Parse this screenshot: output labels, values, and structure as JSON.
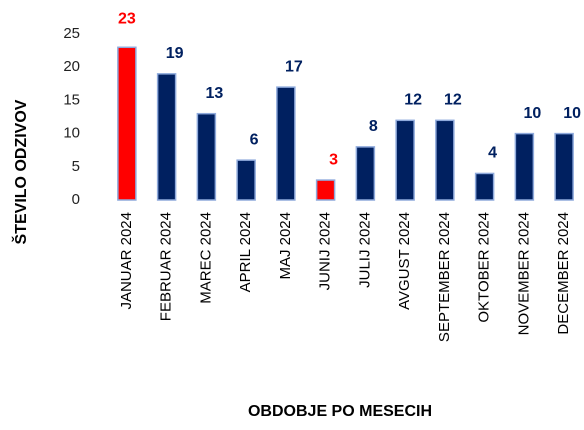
{
  "chart_data": {
    "type": "bar",
    "x_label": "OBDOBJE PO MESECIH",
    "y_label": "ŠTEVILO ODZIVOV",
    "categories": [
      "JANUAR 2024",
      "FEBRUAR 2024",
      "MAREC 2024",
      "APRIL 2024",
      "MAJ 2024",
      "JUNIJ 2024",
      "JULIJ 2024",
      "AVGUST 2024",
      "SEPTEMBER 2024",
      "OKTOBER 2024",
      "NOVEMBER 2024",
      "DECEMBER 2024"
    ],
    "values": [
      23,
      19,
      13,
      6,
      17,
      3,
      8,
      12,
      12,
      4,
      10,
      10
    ],
    "colors": [
      "#ff0000",
      "#002060",
      "#002060",
      "#002060",
      "#002060",
      "#ff0000",
      "#002060",
      "#002060",
      "#002060",
      "#002060",
      "#002060",
      "#002060"
    ],
    "ylim": [
      0,
      25
    ],
    "yticks": [
      0,
      5,
      10,
      15,
      20,
      25
    ],
    "grid": false
  }
}
